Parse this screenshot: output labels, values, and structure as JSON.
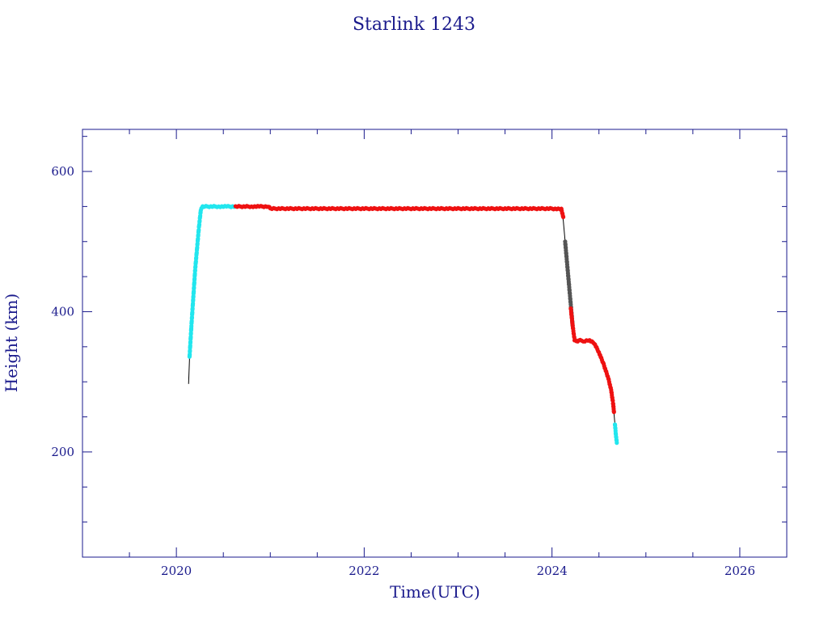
{
  "chart_data": {
    "type": "scatter",
    "title": "Starlink 1243",
    "xlabel": "Time(UTC)",
    "ylabel": "Height (km)",
    "xlim": [
      2019.0,
      2026.5
    ],
    "ylim": [
      50,
      660
    ],
    "x_ticks": [
      2020,
      2022,
      2024,
      2026
    ],
    "x_tick_labels": [
      "2020",
      "2022",
      "2024",
      "2026"
    ],
    "x_minor_step": 0.5,
    "y_ticks": [
      200,
      400,
      600
    ],
    "y_tick_labels": [
      "200",
      "400",
      "600"
    ],
    "y_minor_step": 50,
    "grid": false,
    "colors": {
      "axes": "#1a1a8c",
      "text": "#1a1a8c",
      "trace": "#000000",
      "phase_cyan": "#22e6ee",
      "phase_red": "#ee1111",
      "decay_marker": "#555555"
    },
    "trace": {
      "x": [
        2020.13,
        2020.14,
        2020.145,
        2020.16,
        2020.18,
        2020.2,
        2020.22,
        2020.24,
        2020.26,
        2020.28,
        2020.35,
        2020.5,
        2020.62,
        2020.7,
        2020.85,
        2020.95,
        2021.0,
        2021.5,
        2022.0,
        2022.5,
        2023.0,
        2023.5,
        2024.0,
        2024.1,
        2024.12,
        2024.14,
        2024.16,
        2024.18,
        2024.2,
        2024.22,
        2024.24,
        2024.26,
        2024.3,
        2024.35,
        2024.4,
        2024.45,
        2024.5,
        2024.55,
        2024.6,
        2024.63,
        2024.65,
        2024.66,
        2024.67,
        2024.68,
        2024.69
      ],
      "y": [
        297,
        333,
        340,
        380,
        420,
        460,
        490,
        520,
        545,
        550,
        550,
        550,
        550,
        550,
        550,
        550,
        547,
        547,
        547,
        547,
        547,
        547,
        547,
        546,
        530,
        500,
        470,
        440,
        410,
        380,
        360,
        358,
        359,
        358,
        359,
        355,
        342,
        325,
        305,
        288,
        270,
        255,
        240,
        225,
        213
      ]
    },
    "series": [
      {
        "color": "#22e6ee",
        "x": [
          2020.14,
          2020.16,
          2020.18,
          2020.2,
          2020.22,
          2020.24,
          2020.26,
          2020.28,
          2020.35,
          2020.45,
          2020.55,
          2020.63
        ],
        "y": [
          335,
          380,
          420,
          460,
          490,
          520,
          545,
          550,
          550,
          550,
          550,
          550
        ]
      },
      {
        "color": "#ee1111",
        "x": [
          2020.63,
          2020.7,
          2020.8,
          2020.9,
          2020.98,
          2021.0,
          2021.25,
          2021.5,
          2021.75,
          2022.0,
          2022.25,
          2022.5,
          2022.75,
          2023.0,
          2023.25,
          2023.5,
          2023.75,
          2024.0,
          2024.1,
          2024.12
        ],
        "y": [
          550,
          550,
          550,
          550,
          550,
          547,
          547,
          547,
          547,
          547,
          547,
          547,
          547,
          547,
          547,
          547,
          547,
          547,
          546,
          535
        ]
      },
      {
        "color": "#555555",
        "x": [
          2024.14,
          2024.16,
          2024.18,
          2024.2,
          2024.22
        ],
        "y": [
          500,
          470,
          440,
          410,
          380
        ]
      },
      {
        "color": "#ee1111",
        "x": [
          2024.2,
          2024.22,
          2024.24,
          2024.26,
          2024.3,
          2024.35,
          2024.4,
          2024.45,
          2024.5,
          2024.55,
          2024.6,
          2024.63,
          2024.65,
          2024.66
        ],
        "y": [
          405,
          380,
          360,
          358,
          359,
          358,
          359,
          355,
          342,
          325,
          305,
          288,
          270,
          257
        ]
      },
      {
        "color": "#22e6ee",
        "x": [
          2024.67,
          2024.68,
          2024.69
        ],
        "y": [
          240,
          225,
          213
        ]
      }
    ]
  }
}
